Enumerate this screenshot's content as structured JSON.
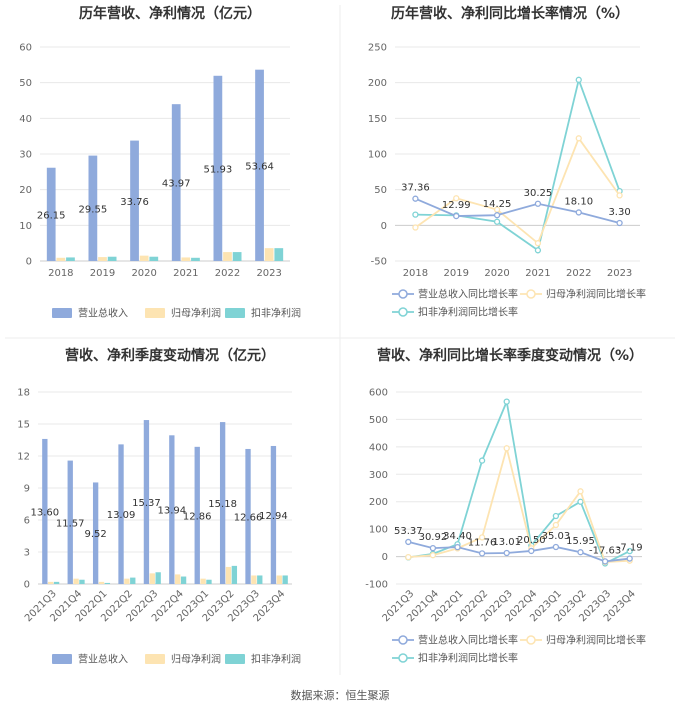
{
  "footer": {
    "source": "数据来源：恒生聚源"
  },
  "colors": {
    "revenue": "#8faadc",
    "net_profit": "#fde4b2",
    "deducted_profit": "#7fd3d5",
    "grid": "#e8e8e8",
    "axis": "#cccccc"
  },
  "chart_data": [
    {
      "id": "annual-bar",
      "type": "bar",
      "title": "历年营收、净利情况（亿元）",
      "categories": [
        "2018",
        "2019",
        "2020",
        "2021",
        "2022",
        "2023"
      ],
      "ylim": [
        0,
        60
      ],
      "yticks": [
        0,
        10,
        20,
        30,
        40,
        50,
        60
      ],
      "legend_position": "bottom",
      "series": [
        {
          "name": "营业总收入",
          "values": [
            26.15,
            29.55,
            33.76,
            43.97,
            51.93,
            53.64
          ],
          "labels": [
            "26.15",
            "29.55",
            "33.76",
            "43.97",
            "51.93",
            "53.64"
          ]
        },
        {
          "name": "归母净利润",
          "values": [
            0.9,
            1.1,
            1.5,
            1.0,
            2.5,
            3.6
          ]
        },
        {
          "name": "扣非净利润",
          "values": [
            1.0,
            1.2,
            1.2,
            0.9,
            2.5,
            3.6
          ]
        }
      ]
    },
    {
      "id": "annual-line",
      "type": "line",
      "title": "历年营收、净利同比增长率情况（%）",
      "categories": [
        "2018",
        "2019",
        "2020",
        "2021",
        "2022",
        "2023"
      ],
      "ylim": [
        -50,
        250
      ],
      "yticks": [
        -50,
        0,
        50,
        100,
        150,
        200,
        250
      ],
      "legend_position": "bottom",
      "series": [
        {
          "name": "营业总收入同比增长率",
          "values": [
            37.36,
            12.99,
            14.25,
            30.25,
            18.1,
            3.3
          ],
          "labels": [
            "37.36",
            "12.99",
            "14.25",
            "30.25",
            "18.10",
            "3.30"
          ]
        },
        {
          "name": "归母净利润同比增长率",
          "values": [
            -3,
            38,
            22,
            -25,
            122,
            42
          ]
        },
        {
          "name": "扣非净利润同比增长率",
          "values": [
            15,
            14,
            5,
            -35,
            204,
            48
          ]
        }
      ]
    },
    {
      "id": "quarterly-bar",
      "type": "bar",
      "title": "营收、净利季度变动情况（亿元）",
      "categories": [
        "2021Q3",
        "2021Q4",
        "2022Q1",
        "2022Q2",
        "2022Q3",
        "2022Q4",
        "2023Q1",
        "2023Q2",
        "2023Q3",
        "2023Q4"
      ],
      "ylim": [
        0,
        18
      ],
      "yticks": [
        0,
        3,
        6,
        9,
        12,
        15,
        18
      ],
      "legend_position": "bottom",
      "series": [
        {
          "name": "营业总收入",
          "values": [
            13.6,
            11.57,
            9.52,
            13.09,
            15.37,
            13.94,
            12.86,
            15.18,
            12.66,
            12.94
          ],
          "labels": [
            "13.60",
            "11.57",
            "9.52",
            "13.09",
            "15.37",
            "13.94",
            "12.86",
            "15.18",
            "12.66",
            "12.94"
          ]
        },
        {
          "name": "归母净利润",
          "values": [
            0.2,
            0.5,
            0.2,
            0.5,
            1.0,
            0.9,
            0.5,
            1.6,
            0.8,
            0.8
          ]
        },
        {
          "name": "扣非净利润",
          "values": [
            0.2,
            0.4,
            0.1,
            0.6,
            1.1,
            0.7,
            0.4,
            1.7,
            0.8,
            0.8
          ]
        }
      ]
    },
    {
      "id": "quarterly-line",
      "type": "line",
      "title": "营收、净利同比增长率季度变动情况（%）",
      "categories": [
        "2021Q3",
        "2021Q4",
        "2022Q1",
        "2022Q2",
        "2022Q3",
        "2022Q4",
        "2023Q1",
        "2023Q2",
        "2023Q3",
        "2023Q4"
      ],
      "ylim": [
        -100,
        600
      ],
      "yticks": [
        -100,
        0,
        100,
        200,
        300,
        400,
        500,
        600
      ],
      "legend_position": "bottom",
      "series": [
        {
          "name": "营业总收入同比增长率",
          "values": [
            53.37,
            30.92,
            34.4,
            11.76,
            13.01,
            20.5,
            35.03,
            15.95,
            -17.63,
            -7.19
          ],
          "labels": [
            "53.37",
            "30.92",
            "34.40",
            "11.76",
            "13.01",
            "20.50",
            "35.03",
            "15.95",
            "-17.63",
            "-7.19"
          ]
        },
        {
          "name": "归母净利润同比增长率",
          "values": [
            -2,
            5,
            30,
            70,
            395,
            30,
            115,
            238,
            -20,
            -15
          ]
        },
        {
          "name": "扣非净利润同比增长率",
          "values": [
            -3,
            10,
            45,
            350,
            565,
            40,
            148,
            200,
            -25,
            20
          ]
        }
      ]
    }
  ]
}
